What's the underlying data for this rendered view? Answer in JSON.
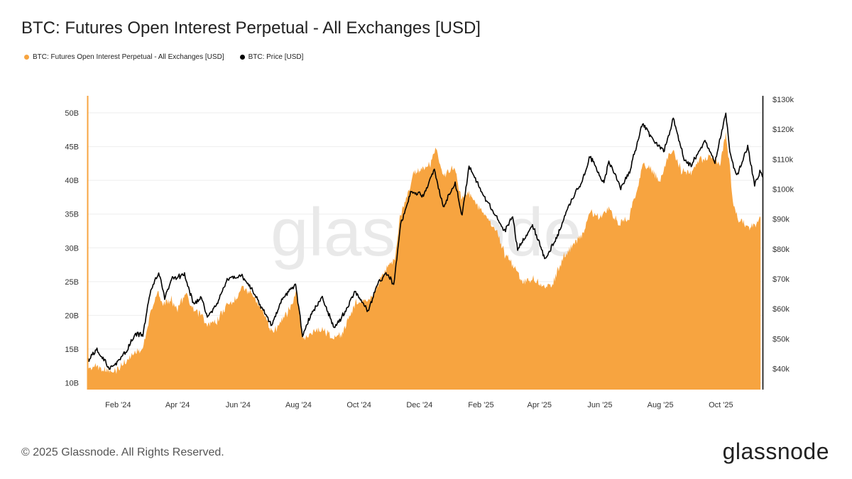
{
  "title": "BTC: Futures Open Interest Perpetual - All Exchanges [USD]",
  "footer": "© 2025 Glassnode. All Rights Reserved.",
  "logo": "glassnode",
  "watermark": "glassnode",
  "colors": {
    "open_interest": "#f7a440",
    "price": "#000000",
    "grid": "#eeeeee",
    "axis_line": "#000000"
  },
  "chart_data": {
    "type": "area",
    "x_type": "date",
    "xlim": [
      "2024-01-01",
      "2025-11-12"
    ],
    "x_ticks": [
      {
        "date": "2024-02-01",
        "label": "Feb '24"
      },
      {
        "date": "2024-04-01",
        "label": "Apr '24"
      },
      {
        "date": "2024-06-01",
        "label": "Jun '24"
      },
      {
        "date": "2024-08-01",
        "label": "Aug '24"
      },
      {
        "date": "2024-10-01",
        "label": "Oct '24"
      },
      {
        "date": "2024-12-01",
        "label": "Dec '24"
      },
      {
        "date": "2025-02-01",
        "label": "Feb '25"
      },
      {
        "date": "2025-04-01",
        "label": "Apr '25"
      },
      {
        "date": "2025-06-01",
        "label": "Jun '25"
      },
      {
        "date": "2025-08-01",
        "label": "Aug '25"
      },
      {
        "date": "2025-10-01",
        "label": "Oct '25"
      }
    ],
    "y_left": {
      "ylim": [
        9000000000,
        52000000000
      ],
      "ticks": [
        {
          "value": 10000000000,
          "label": "10B"
        },
        {
          "value": 15000000000,
          "label": "15B"
        },
        {
          "value": 20000000000,
          "label": "20B"
        },
        {
          "value": 25000000000,
          "label": "25B"
        },
        {
          "value": 30000000000,
          "label": "30B"
        },
        {
          "value": 35000000000,
          "label": "35B"
        },
        {
          "value": 40000000000,
          "label": "40B"
        },
        {
          "value": 45000000000,
          "label": "45B"
        },
        {
          "value": 50000000000,
          "label": "50B"
        }
      ]
    },
    "y_right": {
      "ylim": [
        33000,
        130000
      ],
      "ticks": [
        {
          "value": 40000,
          "label": "$40k"
        },
        {
          "value": 50000,
          "label": "$50k"
        },
        {
          "value": 60000,
          "label": "$60k"
        },
        {
          "value": 70000,
          "label": "$70k"
        },
        {
          "value": 80000,
          "label": "$80k"
        },
        {
          "value": 90000,
          "label": "$90k"
        },
        {
          "value": 100000,
          "label": "$100k"
        },
        {
          "value": 110000,
          "label": "$110k"
        },
        {
          "value": 120000,
          "label": "$120k"
        },
        {
          "value": 130000,
          "label": "$130k"
        }
      ]
    },
    "grid": true,
    "legend_position": "top-left",
    "series": [
      {
        "name": "BTC: Futures Open Interest Perpetual - All Exchanges [USD]",
        "type": "area",
        "axis": "left",
        "color": "#f7a440",
        "points": [
          [
            "2024-01-01",
            12000000000.0
          ],
          [
            "2024-01-10",
            12500000000.0
          ],
          [
            "2024-01-20",
            11800000000.0
          ],
          [
            "2024-01-28",
            11500000000.0
          ],
          [
            "2024-02-08",
            13000000000.0
          ],
          [
            "2024-02-18",
            14500000000.0
          ],
          [
            "2024-02-26",
            15000000000.0
          ],
          [
            "2024-03-05",
            20500000000.0
          ],
          [
            "2024-03-12",
            23500000000.0
          ],
          [
            "2024-03-18",
            21500000000.0
          ],
          [
            "2024-03-25",
            22500000000.0
          ],
          [
            "2024-04-01",
            21000000000.0
          ],
          [
            "2024-04-09",
            23500000000.0
          ],
          [
            "2024-04-15",
            21000000000.0
          ],
          [
            "2024-04-25",
            20000000000.0
          ],
          [
            "2024-05-01",
            18500000000.0
          ],
          [
            "2024-05-10",
            19000000000.0
          ],
          [
            "2024-05-20",
            21500000000.0
          ],
          [
            "2024-05-28",
            22000000000.0
          ],
          [
            "2024-06-05",
            24500000000.0
          ],
          [
            "2024-06-15",
            23000000000.0
          ],
          [
            "2024-06-25",
            21000000000.0
          ],
          [
            "2024-07-05",
            17500000000.0
          ],
          [
            "2024-07-15",
            19000000000.0
          ],
          [
            "2024-07-25",
            21500000000.0
          ],
          [
            "2024-07-30",
            23500000000.0
          ],
          [
            "2024-08-05",
            16500000000.0
          ],
          [
            "2024-08-15",
            17500000000.0
          ],
          [
            "2024-08-25",
            18000000000.0
          ],
          [
            "2024-09-05",
            16500000000.0
          ],
          [
            "2024-09-15",
            17500000000.0
          ],
          [
            "2024-09-28",
            22000000000.0
          ],
          [
            "2024-10-10",
            22000000000.0
          ],
          [
            "2024-10-20",
            24500000000.0
          ],
          [
            "2024-10-29",
            27000000000.0
          ],
          [
            "2024-11-06",
            28500000000.0
          ],
          [
            "2024-11-12",
            35000000000.0
          ],
          [
            "2024-11-20",
            38500000000.0
          ],
          [
            "2024-11-25",
            41000000000.0
          ],
          [
            "2024-12-05",
            42000000000.0
          ],
          [
            "2024-12-12",
            42500000000.0
          ],
          [
            "2024-12-17",
            45000000000.0
          ],
          [
            "2024-12-25",
            40500000000.0
          ],
          [
            "2025-01-05",
            42000000000.0
          ],
          [
            "2025-01-12",
            37500000000.0
          ],
          [
            "2025-01-20",
            38000000000.0
          ],
          [
            "2025-01-30",
            36000000000.0
          ],
          [
            "2025-02-05",
            35000000000.0
          ],
          [
            "2025-02-15",
            33000000000.0
          ],
          [
            "2025-02-25",
            29000000000.0
          ],
          [
            "2025-03-05",
            27500000000.0
          ],
          [
            "2025-03-15",
            25000000000.0
          ],
          [
            "2025-03-25",
            25500000000.0
          ],
          [
            "2025-04-07",
            24000000000.0
          ],
          [
            "2025-04-15",
            25000000000.0
          ],
          [
            "2025-04-25",
            28500000000.0
          ],
          [
            "2025-05-05",
            30500000000.0
          ],
          [
            "2025-05-15",
            32000000000.0
          ],
          [
            "2025-05-22",
            35500000000.0
          ],
          [
            "2025-06-01",
            34500000000.0
          ],
          [
            "2025-06-10",
            36000000000.0
          ],
          [
            "2025-06-20",
            33500000000.0
          ],
          [
            "2025-06-30",
            34500000000.0
          ],
          [
            "2025-07-10",
            39500000000.0
          ],
          [
            "2025-07-14",
            42500000000.0
          ],
          [
            "2025-07-22",
            41500000000.0
          ],
          [
            "2025-08-01",
            40000000000.0
          ],
          [
            "2025-08-10",
            44000000000.0
          ],
          [
            "2025-08-14",
            44500000000.0
          ],
          [
            "2025-08-22",
            41500000000.0
          ],
          [
            "2025-09-01",
            41000000000.0
          ],
          [
            "2025-09-10",
            43000000000.0
          ],
          [
            "2025-09-20",
            43500000000.0
          ],
          [
            "2025-09-30",
            42500000000.0
          ],
          [
            "2025-10-06",
            47000000000.0
          ],
          [
            "2025-10-10",
            42000000000.0
          ],
          [
            "2025-10-13",
            36500000000.0
          ],
          [
            "2025-10-20",
            34000000000.0
          ],
          [
            "2025-10-30",
            33000000000.0
          ],
          [
            "2025-11-05",
            33500000000.0
          ],
          [
            "2025-11-10",
            34500000000.0
          ]
        ]
      },
      {
        "name": "BTC: Price [USD]",
        "type": "line",
        "axis": "right",
        "color": "#000000",
        "points": [
          [
            "2024-01-01",
            42500
          ],
          [
            "2024-01-10",
            46500
          ],
          [
            "2024-01-20",
            42000
          ],
          [
            "2024-01-23",
            39500
          ],
          [
            "2024-02-08",
            45000
          ],
          [
            "2024-02-18",
            51500
          ],
          [
            "2024-02-26",
            51500
          ],
          [
            "2024-03-05",
            66000
          ],
          [
            "2024-03-13",
            72500
          ],
          [
            "2024-03-19",
            63500
          ],
          [
            "2024-03-26",
            70000
          ],
          [
            "2024-04-08",
            71500
          ],
          [
            "2024-04-17",
            61500
          ],
          [
            "2024-04-25",
            64000
          ],
          [
            "2024-05-01",
            57500
          ],
          [
            "2024-05-10",
            61000
          ],
          [
            "2024-05-21",
            70000
          ],
          [
            "2024-06-05",
            71000
          ],
          [
            "2024-06-15",
            66500
          ],
          [
            "2024-06-24",
            61000
          ],
          [
            "2024-07-05",
            54500
          ],
          [
            "2024-07-15",
            63000
          ],
          [
            "2024-07-29",
            68500
          ],
          [
            "2024-08-05",
            51000
          ],
          [
            "2024-08-15",
            59000
          ],
          [
            "2024-08-25",
            64000
          ],
          [
            "2024-09-06",
            53500
          ],
          [
            "2024-09-17",
            59000
          ],
          [
            "2024-09-27",
            66000
          ],
          [
            "2024-10-10",
            59000
          ],
          [
            "2024-10-20",
            68500
          ],
          [
            "2024-10-29",
            72000
          ],
          [
            "2024-11-05",
            68000
          ],
          [
            "2024-11-12",
            88000
          ],
          [
            "2024-11-22",
            99000
          ],
          [
            "2024-12-05",
            98000
          ],
          [
            "2024-12-16",
            106500
          ],
          [
            "2024-12-25",
            94000
          ],
          [
            "2025-01-06",
            102000
          ],
          [
            "2025-01-13",
            91000
          ],
          [
            "2025-01-20",
            107500
          ],
          [
            "2025-02-05",
            97000
          ],
          [
            "2025-02-25",
            86000
          ],
          [
            "2025-03-05",
            91000
          ],
          [
            "2025-03-10",
            80000
          ],
          [
            "2025-03-25",
            88000
          ],
          [
            "2025-04-07",
            76500
          ],
          [
            "2025-04-20",
            85000
          ],
          [
            "2025-05-01",
            95000
          ],
          [
            "2025-05-15",
            103500
          ],
          [
            "2025-05-22",
            111000
          ],
          [
            "2025-06-05",
            102000
          ],
          [
            "2025-06-10",
            109500
          ],
          [
            "2025-06-22",
            100500
          ],
          [
            "2025-07-01",
            106000
          ],
          [
            "2025-07-14",
            122000
          ],
          [
            "2025-07-25",
            116000
          ],
          [
            "2025-08-05",
            113000
          ],
          [
            "2025-08-14",
            123500
          ],
          [
            "2025-08-25",
            110000
          ],
          [
            "2025-09-01",
            108000
          ],
          [
            "2025-09-15",
            116000
          ],
          [
            "2025-09-25",
            109000
          ],
          [
            "2025-10-06",
            125500
          ],
          [
            "2025-10-10",
            112000
          ],
          [
            "2025-10-17",
            104500
          ],
          [
            "2025-10-28",
            114000
          ],
          [
            "2025-11-04",
            101500
          ],
          [
            "2025-11-10",
            106000
          ],
          [
            "2025-11-12",
            104000
          ]
        ]
      }
    ]
  }
}
